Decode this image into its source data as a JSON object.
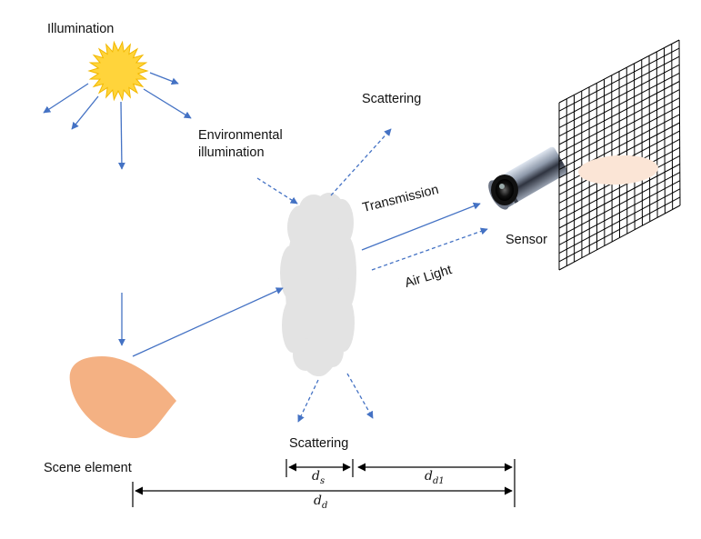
{
  "labels": {
    "illumination": "Illumination",
    "environmental_illumination_line1": "Environmental",
    "environmental_illumination_line2": "illumination",
    "scattering_top": "Scattering",
    "scattering_bottom": "Scattering",
    "transmission": "Transmission",
    "air_light": "Air Light",
    "sensor": "Sensor",
    "scene_element": "Scene element"
  },
  "distances": {
    "ds": {
      "main": "d",
      "sub": "s"
    },
    "dd1": {
      "main": "d",
      "sub": "d1"
    },
    "dd": {
      "main": "d",
      "sub": "d"
    }
  },
  "colors": {
    "arrow": "#4472c4",
    "sun": "#ffd43b",
    "cloud": "#e3e3e3",
    "scene": "#f4b183",
    "screen_blob": "#fbe5d6"
  }
}
